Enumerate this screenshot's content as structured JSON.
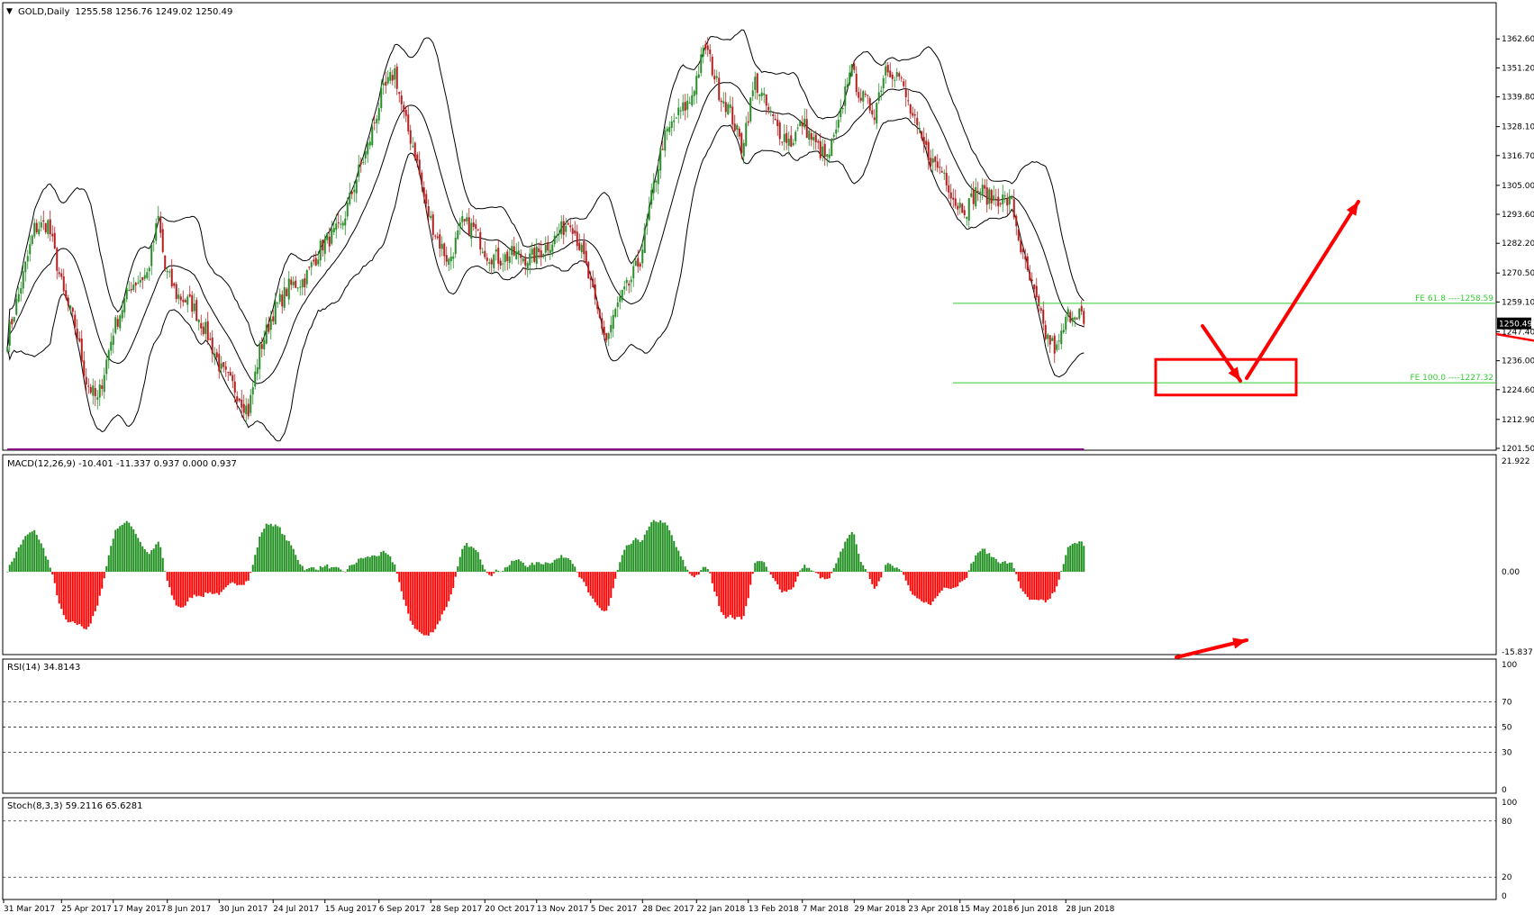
{
  "chart_data": {
    "type": "candlestick",
    "symbol": "GOLD,Daily",
    "ohlc_label": "1255.58 1256.76 1249.02 1250.49",
    "current_price": "1250.49",
    "price_axis_ticks": [
      "1362.60",
      "1351.20",
      "1339.80",
      "1328.10",
      "1316.70",
      "1305.00",
      "1293.60",
      "1282.20",
      "1270.50",
      "1259.10",
      "1247.40",
      "1236.00",
      "1224.60",
      "1212.90",
      "1201.50"
    ],
    "ylim": [
      1201.5,
      1368.0
    ],
    "date_labels": [
      "31 Mar 2017",
      "25 Apr 2017",
      "17 May 2017",
      "8 Jun 2017",
      "30 Jun 2017",
      "24 Jul 2017",
      "15 Aug 2017",
      "6 Sep 2017",
      "28 Sep 2017",
      "20 Oct 2017",
      "13 Nov 2017",
      "5 Dec 2017",
      "28 Dec 2017",
      "22 Jan 2018",
      "13 Feb 2018",
      "7 Mar 2018",
      "29 Mar 2018",
      "23 Apr 2018",
      "15 May 2018",
      "6 Jun 2018",
      "28 Jun 2018"
    ],
    "price_anchors": [
      [
        0,
        1245
      ],
      [
        5,
        1262
      ],
      [
        12,
        1288
      ],
      [
        18,
        1290
      ],
      [
        25,
        1262
      ],
      [
        30,
        1250
      ],
      [
        35,
        1228
      ],
      [
        40,
        1220
      ],
      [
        47,
        1248
      ],
      [
        55,
        1266
      ],
      [
        62,
        1270
      ],
      [
        67,
        1292
      ],
      [
        70,
        1272
      ],
      [
        75,
        1262
      ],
      [
        82,
        1258
      ],
      [
        89,
        1246
      ],
      [
        95,
        1232
      ],
      [
        101,
        1225
      ],
      [
        107,
        1216
      ],
      [
        112,
        1240
      ],
      [
        118,
        1255
      ],
      [
        125,
        1265
      ],
      [
        132,
        1268
      ],
      [
        140,
        1282
      ],
      [
        148,
        1288
      ],
      [
        155,
        1308
      ],
      [
        160,
        1320
      ],
      [
        166,
        1340
      ],
      [
        172,
        1350
      ],
      [
        176,
        1332
      ],
      [
        181,
        1318
      ],
      [
        186,
        1296
      ],
      [
        191,
        1284
      ],
      [
        196,
        1275
      ],
      [
        202,
        1290
      ],
      [
        207,
        1288
      ],
      [
        213,
        1278
      ],
      [
        219,
        1276
      ],
      [
        225,
        1278
      ],
      [
        232,
        1276
      ],
      [
        238,
        1280
      ],
      [
        244,
        1285
      ],
      [
        250,
        1292
      ],
      [
        256,
        1276
      ],
      [
        261,
        1258
      ],
      [
        266,
        1244
      ],
      [
        271,
        1258
      ],
      [
        276,
        1266
      ],
      [
        281,
        1276
      ],
      [
        286,
        1300
      ],
      [
        291,
        1322
      ],
      [
        297,
        1332
      ],
      [
        303,
        1338
      ],
      [
        310,
        1360
      ],
      [
        316,
        1342
      ],
      [
        321,
        1334
      ],
      [
        326,
        1320
      ],
      [
        332,
        1346
      ],
      [
        338,
        1334
      ],
      [
        343,
        1326
      ],
      [
        348,
        1322
      ],
      [
        353,
        1330
      ],
      [
        358,
        1322
      ],
      [
        364,
        1315
      ],
      [
        369,
        1328
      ],
      [
        374,
        1352
      ],
      [
        379,
        1340
      ],
      [
        385,
        1334
      ],
      [
        390,
        1352
      ],
      [
        396,
        1348
      ],
      [
        401,
        1334
      ],
      [
        406,
        1322
      ],
      [
        411,
        1314
      ],
      [
        416,
        1310
      ],
      [
        421,
        1298
      ],
      [
        426,
        1296
      ],
      [
        431,
        1304
      ],
      [
        436,
        1300
      ],
      [
        441,
        1300
      ],
      [
        446,
        1298
      ],
      [
        451,
        1276
      ],
      [
        456,
        1262
      ],
      [
        461,
        1246
      ],
      [
        466,
        1240
      ],
      [
        471,
        1254
      ],
      [
        476,
        1256
      ],
      [
        478,
        1250.49
      ]
    ],
    "annotations": [
      {
        "text": "FE 61.8 ----1258.59",
        "price": 1258.59
      },
      {
        "text": "FE 100.0 ----1227.32",
        "price": 1227.32
      }
    ],
    "colors": {
      "bull": "#2a8c2a",
      "bear": "#b21f1f",
      "fib": "#33cc33",
      "trend": "#ff0000",
      "macd": "#0000ff",
      "signal": "#ff0000",
      "hist_pos": "#1f8f1f",
      "hist_neg": "#ff0000",
      "rsi": "#1e90ff",
      "stoch_k": "#0000ff",
      "stoch_d": "#ff0000",
      "bands": "#000000"
    }
  },
  "macd": {
    "label": "MACD(12,26,9) -10.401 -11.337 0.937 0.000 0.937",
    "ticks": [
      "21.922",
      "0.00",
      "-15.837"
    ],
    "ylim": [
      -15.837,
      21.922
    ]
  },
  "rsi": {
    "label": "RSI(14) 34.8143",
    "ticks": [
      "100",
      "70",
      "50",
      "30",
      "0"
    ],
    "levels": [
      70,
      50,
      30
    ]
  },
  "stoch": {
    "label": "Stoch(8,3,3) 59.2116 65.6281",
    "ticks": [
      "100",
      "80",
      "20",
      "0"
    ],
    "levels": [
      80,
      20
    ]
  }
}
